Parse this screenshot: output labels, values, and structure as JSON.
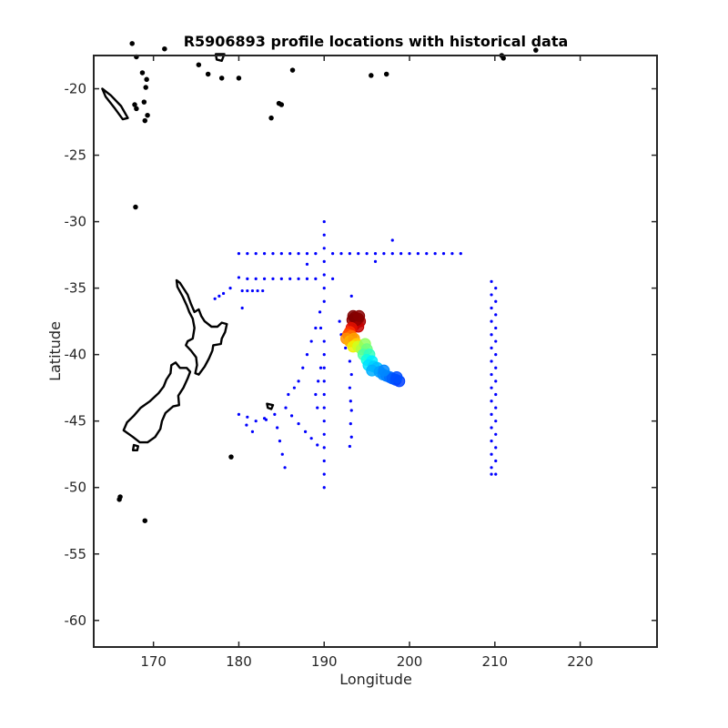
{
  "chart_data": {
    "type": "scatter",
    "title": "R5906893 profile locations with historical data",
    "xlabel": "Longitude",
    "ylabel": "Latitude",
    "xlim": [
      163,
      229
    ],
    "ylim": [
      -62,
      -17.5
    ],
    "xticks": [
      170,
      180,
      190,
      200,
      210,
      220
    ],
    "yticks": [
      -20,
      -25,
      -30,
      -35,
      -40,
      -45,
      -50,
      -55,
      -60
    ],
    "xtick_labels": [
      "170",
      "180",
      "190",
      "200",
      "210",
      "220"
    ],
    "ytick_labels": [
      "-20",
      "-25",
      "-30",
      "-35",
      "-40",
      "-45",
      "-50",
      "-55",
      "-60"
    ],
    "grid": false,
    "legend": "none",
    "colors": {
      "historical": "#0000ff",
      "coastline": "#000000",
      "axes": "#262626"
    },
    "historical_data": [
      {
        "lon": 180,
        "lat": -32.4
      },
      {
        "lon": 181,
        "lat": -32.4
      },
      {
        "lon": 182,
        "lat": -32.4
      },
      {
        "lon": 183,
        "lat": -32.4
      },
      {
        "lon": 184,
        "lat": -32.4
      },
      {
        "lon": 185,
        "lat": -32.4
      },
      {
        "lon": 186,
        "lat": -32.4
      },
      {
        "lon": 187,
        "lat": -32.4
      },
      {
        "lon": 188,
        "lat": -32.4
      },
      {
        "lon": 189,
        "lat": -32.4
      },
      {
        "lon": 191,
        "lat": -32.4
      },
      {
        "lon": 192,
        "lat": -32.4
      },
      {
        "lon": 193,
        "lat": -32.4
      },
      {
        "lon": 194,
        "lat": -32.4
      },
      {
        "lon": 195,
        "lat": -32.4
      },
      {
        "lon": 196,
        "lat": -32.4
      },
      {
        "lon": 197,
        "lat": -32.4
      },
      {
        "lon": 198,
        "lat": -32.4
      },
      {
        "lon": 199,
        "lat": -32.4
      },
      {
        "lon": 200,
        "lat": -32.4
      },
      {
        "lon": 201,
        "lat": -32.4
      },
      {
        "lon": 202,
        "lat": -32.4
      },
      {
        "lon": 203,
        "lat": -32.4
      },
      {
        "lon": 204,
        "lat": -32.4
      },
      {
        "lon": 205,
        "lat": -32.4
      },
      {
        "lon": 206,
        "lat": -32.4
      },
      {
        "lon": 190,
        "lat": -30.0
      },
      {
        "lon": 190,
        "lat": -31.0
      },
      {
        "lon": 190,
        "lat": -32.0
      },
      {
        "lon": 190,
        "lat": -33.0
      },
      {
        "lon": 190,
        "lat": -34.0
      },
      {
        "lon": 190,
        "lat": -35.0
      },
      {
        "lon": 190,
        "lat": -36.0
      },
      {
        "lon": 198,
        "lat": -31.4
      },
      {
        "lon": 188,
        "lat": -33.2
      },
      {
        "lon": 196,
        "lat": -33.0
      },
      {
        "lon": 180,
        "lat": -34.2
      },
      {
        "lon": 181,
        "lat": -34.3
      },
      {
        "lon": 182,
        "lat": -34.3
      },
      {
        "lon": 183,
        "lat": -34.3
      },
      {
        "lon": 184,
        "lat": -34.3
      },
      {
        "lon": 185,
        "lat": -34.3
      },
      {
        "lon": 186,
        "lat": -34.3
      },
      {
        "lon": 187,
        "lat": -34.3
      },
      {
        "lon": 188,
        "lat": -34.3
      },
      {
        "lon": 189,
        "lat": -34.3
      },
      {
        "lon": 191,
        "lat": -34.3
      },
      {
        "lon": 180.4,
        "lat": -35.2
      },
      {
        "lon": 181.0,
        "lat": -35.2
      },
      {
        "lon": 181.6,
        "lat": -35.2
      },
      {
        "lon": 182.2,
        "lat": -35.2
      },
      {
        "lon": 182.8,
        "lat": -35.2
      },
      {
        "lon": 177.2,
        "lat": -35.8
      },
      {
        "lon": 177.7,
        "lat": -35.6
      },
      {
        "lon": 178.2,
        "lat": -35.4
      },
      {
        "lon": 179.0,
        "lat": -35.0
      },
      {
        "lon": 180.4,
        "lat": -36.5
      },
      {
        "lon": 193.2,
        "lat": -35.6
      },
      {
        "lon": 189.5,
        "lat": -36.8
      },
      {
        "lon": 189.0,
        "lat": -38.0
      },
      {
        "lon": 188.5,
        "lat": -39.0
      },
      {
        "lon": 188.0,
        "lat": -40.0
      },
      {
        "lon": 187.5,
        "lat": -41.0
      },
      {
        "lon": 187.0,
        "lat": -42.0
      },
      {
        "lon": 186.5,
        "lat": -42.5
      },
      {
        "lon": 185.8,
        "lat": -43.0
      },
      {
        "lon": 189.6,
        "lat": -38.0
      },
      {
        "lon": 190.0,
        "lat": -39.0
      },
      {
        "lon": 190.0,
        "lat": -40.0
      },
      {
        "lon": 189.6,
        "lat": -41.0
      },
      {
        "lon": 189.3,
        "lat": -42.0
      },
      {
        "lon": 189.0,
        "lat": -43.0
      },
      {
        "lon": 189.2,
        "lat": -44.0
      },
      {
        "lon": 191.8,
        "lat": -37.5
      },
      {
        "lon": 192.0,
        "lat": -38.5
      },
      {
        "lon": 192.5,
        "lat": -39.5
      },
      {
        "lon": 193.0,
        "lat": -40.5
      },
      {
        "lon": 193.2,
        "lat": -41.5
      },
      {
        "lon": 193.0,
        "lat": -42.5
      },
      {
        "lon": 193.1,
        "lat": -43.5
      },
      {
        "lon": 190.0,
        "lat": -41.0
      },
      {
        "lon": 190.0,
        "lat": -42.0
      },
      {
        "lon": 190.0,
        "lat": -43.0
      },
      {
        "lon": 190.0,
        "lat": -44.0
      },
      {
        "lon": 190.0,
        "lat": -45.0
      },
      {
        "lon": 190.0,
        "lat": -46.0
      },
      {
        "lon": 190.0,
        "lat": -47.0
      },
      {
        "lon": 190.0,
        "lat": -48.0
      },
      {
        "lon": 190.0,
        "lat": -49.0
      },
      {
        "lon": 190.0,
        "lat": -50.0
      },
      {
        "lon": 185.5,
        "lat": -44.0
      },
      {
        "lon": 186.2,
        "lat": -44.6
      },
      {
        "lon": 187.0,
        "lat": -45.2
      },
      {
        "lon": 187.8,
        "lat": -45.8
      },
      {
        "lon": 188.5,
        "lat": -46.3
      },
      {
        "lon": 189.2,
        "lat": -46.8
      },
      {
        "lon": 184.2,
        "lat": -44.5
      },
      {
        "lon": 184.5,
        "lat": -45.5
      },
      {
        "lon": 184.8,
        "lat": -46.5
      },
      {
        "lon": 185.1,
        "lat": -47.5
      },
      {
        "lon": 185.4,
        "lat": -48.5
      },
      {
        "lon": 180.0,
        "lat": -44.5
      },
      {
        "lon": 181.0,
        "lat": -44.7
      },
      {
        "lon": 182.0,
        "lat": -45.0
      },
      {
        "lon": 183.0,
        "lat": -44.8
      },
      {
        "lon": 180.9,
        "lat": -45.3
      },
      {
        "lon": 181.6,
        "lat": -45.8
      },
      {
        "lon": 183.2,
        "lat": -44.9
      },
      {
        "lon": 193.2,
        "lat": -44.2
      },
      {
        "lon": 193.1,
        "lat": -45.2
      },
      {
        "lon": 193.2,
        "lat": -46.2
      },
      {
        "lon": 193.0,
        "lat": -46.9
      },
      {
        "lon": 209.6,
        "lat": -34.5
      },
      {
        "lon": 209.6,
        "lat": -35.5
      },
      {
        "lon": 209.6,
        "lat": -36.5
      },
      {
        "lon": 209.6,
        "lat": -37.5
      },
      {
        "lon": 209.6,
        "lat": -38.5
      },
      {
        "lon": 209.6,
        "lat": -39.5
      },
      {
        "lon": 209.6,
        "lat": -40.5
      },
      {
        "lon": 209.6,
        "lat": -41.5
      },
      {
        "lon": 209.6,
        "lat": -42.5
      },
      {
        "lon": 209.6,
        "lat": -43.5
      },
      {
        "lon": 209.6,
        "lat": -44.5
      },
      {
        "lon": 209.6,
        "lat": -45.5
      },
      {
        "lon": 209.6,
        "lat": -46.5
      },
      {
        "lon": 209.6,
        "lat": -47.5
      },
      {
        "lon": 209.6,
        "lat": -48.5
      },
      {
        "lon": 209.6,
        "lat": -49.0
      },
      {
        "lon": 210.1,
        "lat": -35.0
      },
      {
        "lon": 210.1,
        "lat": -36.0
      },
      {
        "lon": 210.1,
        "lat": -37.0
      },
      {
        "lon": 210.1,
        "lat": -38.0
      },
      {
        "lon": 210.1,
        "lat": -39.0
      },
      {
        "lon": 210.1,
        "lat": -40.0
      },
      {
        "lon": 210.1,
        "lat": -41.0
      },
      {
        "lon": 210.1,
        "lat": -42.0
      },
      {
        "lon": 210.1,
        "lat": -43.0
      },
      {
        "lon": 210.1,
        "lat": -44.0
      },
      {
        "lon": 210.1,
        "lat": -45.0
      },
      {
        "lon": 210.1,
        "lat": -46.0
      },
      {
        "lon": 210.1,
        "lat": -47.0
      },
      {
        "lon": 210.1,
        "lat": -48.0
      },
      {
        "lon": 210.1,
        "lat": -49.0
      }
    ],
    "profile_locations": [
      {
        "lon": 193.6,
        "lat": -37.2,
        "color": "#7f0000"
      },
      {
        "lon": 194.0,
        "lat": -37.3,
        "color": "#7f0000"
      },
      {
        "lon": 193.3,
        "lat": -37.4,
        "color": "#8b0000"
      },
      {
        "lon": 193.8,
        "lat": -37.6,
        "color": "#9f0000"
      },
      {
        "lon": 194.2,
        "lat": -37.5,
        "color": "#a80000"
      },
      {
        "lon": 193.5,
        "lat": -37.8,
        "color": "#b80000"
      },
      {
        "lon": 194.0,
        "lat": -37.9,
        "color": "#c80000"
      },
      {
        "lon": 193.8,
        "lat": -37.4,
        "color": "#900000"
      },
      {
        "lon": 193.4,
        "lat": -37.1,
        "color": "#800000"
      },
      {
        "lon": 194.1,
        "lat": -37.1,
        "color": "#880000"
      },
      {
        "lon": 193.2,
        "lat": -38.0,
        "color": "#e01000"
      },
      {
        "lon": 193.0,
        "lat": -38.3,
        "color": "#ff3000"
      },
      {
        "lon": 192.8,
        "lat": -38.5,
        "color": "#ff5000"
      },
      {
        "lon": 193.2,
        "lat": -38.6,
        "color": "#ff7000"
      },
      {
        "lon": 192.6,
        "lat": -38.8,
        "color": "#ff9000"
      },
      {
        "lon": 193.0,
        "lat": -39.0,
        "color": "#ffb000"
      },
      {
        "lon": 193.5,
        "lat": -38.8,
        "color": "#ffa000"
      },
      {
        "lon": 193.8,
        "lat": -39.2,
        "color": "#ffd000"
      },
      {
        "lon": 193.4,
        "lat": -39.4,
        "color": "#f0f000"
      },
      {
        "lon": 194.0,
        "lat": -39.4,
        "color": "#d0ff20"
      },
      {
        "lon": 194.4,
        "lat": -39.6,
        "color": "#b0ff40"
      },
      {
        "lon": 194.8,
        "lat": -39.2,
        "color": "#90ff60"
      },
      {
        "lon": 195.0,
        "lat": -39.6,
        "color": "#70ff80"
      },
      {
        "lon": 194.6,
        "lat": -40.0,
        "color": "#50ffa0"
      },
      {
        "lon": 195.3,
        "lat": -40.0,
        "color": "#30ffc0"
      },
      {
        "lon": 195.0,
        "lat": -40.4,
        "color": "#10ffe0"
      },
      {
        "lon": 195.6,
        "lat": -40.5,
        "color": "#00f0ff"
      },
      {
        "lon": 195.2,
        "lat": -40.8,
        "color": "#00e0ff"
      },
      {
        "lon": 195.8,
        "lat": -40.9,
        "color": "#00d0ff"
      },
      {
        "lon": 196.2,
        "lat": -41.0,
        "color": "#00c0ff"
      },
      {
        "lon": 195.6,
        "lat": -41.2,
        "color": "#00b0ff"
      },
      {
        "lon": 196.5,
        "lat": -41.3,
        "color": "#00a0ff"
      },
      {
        "lon": 196.9,
        "lat": -41.5,
        "color": "#0090ff"
      },
      {
        "lon": 197.3,
        "lat": -41.6,
        "color": "#0080ff"
      },
      {
        "lon": 197.7,
        "lat": -41.7,
        "color": "#0070ff"
      },
      {
        "lon": 198.0,
        "lat": -41.8,
        "color": "#0060ff"
      },
      {
        "lon": 198.4,
        "lat": -41.9,
        "color": "#0050ff"
      },
      {
        "lon": 198.8,
        "lat": -42.0,
        "color": "#0040ff"
      },
      {
        "lon": 198.5,
        "lat": -41.7,
        "color": "#0050ff"
      },
      {
        "lon": 197.0,
        "lat": -41.2,
        "color": "#0088ff"
      }
    ]
  }
}
